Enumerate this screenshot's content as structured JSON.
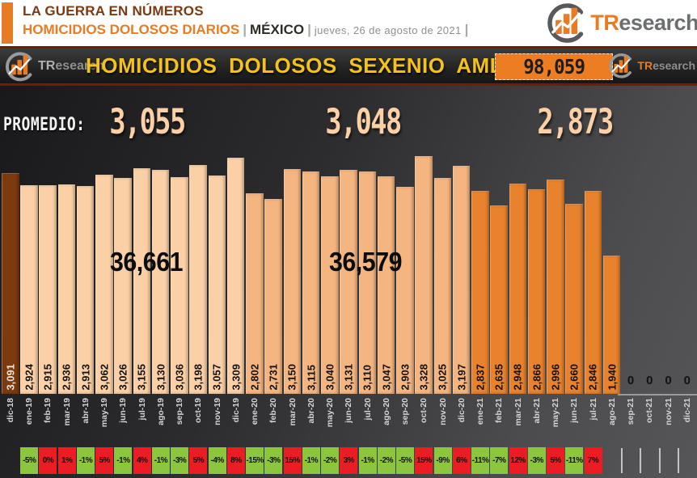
{
  "header": {
    "title_line1": "LA GUERRA EN NÚMEROS",
    "title_line2": "HOMICIDIOS DOLOSOS DIARIOS",
    "pipe": "|",
    "country": "MÉXICO",
    "date": "jueves, 26 de agosto de 2021"
  },
  "brand": {
    "prefix": "TR",
    "suffix": "esearch"
  },
  "titlebar": {
    "title": "HOMICIDIOS DOLOSOS SEXENIO AMLO",
    "total": "98,059"
  },
  "promedio": {
    "label": "PROMEDIO:",
    "values": [
      {
        "text": "3,055",
        "period": "2019"
      },
      {
        "text": "3,048",
        "period": "2020"
      },
      {
        "text": "2,873",
        "period": "2021"
      }
    ]
  },
  "annual_totals": [
    {
      "text": "36,661",
      "period": "2019"
    },
    {
      "text": "36,579",
      "period": "2020"
    }
  ],
  "chart_data": {
    "type": "bar",
    "title": "HOMICIDIOS DOLOSOS SEXENIO AMLO",
    "subtitle": "HOMICIDIOS DOLOSOS DIARIOS | MÉXICO",
    "total_sexenio": 98059,
    "ylim": [
      0,
      3400
    ],
    "legend_position": "none",
    "grid": false,
    "colors": {
      "bar_2018": "#7c3a0f",
      "bar_2019": "#fbd0a6",
      "bar_2020": "#f5b581",
      "bar_2021": "#e8822d",
      "increase_bg": "#ec1c24",
      "decrease_bg": "#8cc63e",
      "accent_orange": "#e87c25",
      "title_yellow": "#f3c21b",
      "title_maroon": "#7b3a12"
    },
    "columns": [
      {
        "month": "dic-18",
        "value": 3091,
        "label": "3,091",
        "group": "2018",
        "pct": null
      },
      {
        "month": "ene-19",
        "value": 2924,
        "label": "2,924",
        "group": "2019",
        "pct": {
          "text": "-5%",
          "dir": "down"
        }
      },
      {
        "month": "feb-19",
        "value": 2915,
        "label": "2,915",
        "group": "2019",
        "pct": {
          "text": "0%",
          "dir": "up"
        }
      },
      {
        "month": "mar-19",
        "value": 2936,
        "label": "2,936",
        "group": "2019",
        "pct": {
          "text": "1%",
          "dir": "up"
        }
      },
      {
        "month": "abr-19",
        "value": 2913,
        "label": "2,913",
        "group": "2019",
        "pct": {
          "text": "-1%",
          "dir": "down"
        }
      },
      {
        "month": "may-19",
        "value": 3062,
        "label": "3,062",
        "group": "2019",
        "pct": {
          "text": "5%",
          "dir": "up"
        }
      },
      {
        "month": "jun-19",
        "value": 3026,
        "label": "3,026",
        "group": "2019",
        "pct": {
          "text": "-1%",
          "dir": "down"
        }
      },
      {
        "month": "jul-19",
        "value": 3155,
        "label": "3,155",
        "group": "2019",
        "pct": {
          "text": "4%",
          "dir": "up"
        }
      },
      {
        "month": "ago-19",
        "value": 3130,
        "label": "3,130",
        "group": "2019",
        "pct": {
          "text": "-1%",
          "dir": "down"
        }
      },
      {
        "month": "sep-19",
        "value": 3036,
        "label": "3,036",
        "group": "2019",
        "pct": {
          "text": "-3%",
          "dir": "down"
        }
      },
      {
        "month": "oct-19",
        "value": 3198,
        "label": "3,198",
        "group": "2019",
        "pct": {
          "text": "5%",
          "dir": "up"
        }
      },
      {
        "month": "nov-19",
        "value": 3057,
        "label": "3,057",
        "group": "2019",
        "pct": {
          "text": "-4%",
          "dir": "down"
        }
      },
      {
        "month": "dic-19",
        "value": 3309,
        "label": "3,309",
        "group": "2019",
        "pct": {
          "text": "8%",
          "dir": "up"
        }
      },
      {
        "month": "ene-20",
        "value": 2802,
        "label": "2,802",
        "group": "2020",
        "pct": {
          "text": "-15%",
          "dir": "down"
        }
      },
      {
        "month": "feb-20",
        "value": 2731,
        "label": "2,731",
        "group": "2020",
        "pct": {
          "text": "-3%",
          "dir": "down"
        }
      },
      {
        "month": "mar-20",
        "value": 3150,
        "label": "3,150",
        "group": "2020",
        "pct": {
          "text": "15%",
          "dir": "up"
        }
      },
      {
        "month": "abr-20",
        "value": 3115,
        "label": "3,115",
        "group": "2020",
        "pct": {
          "text": "-1%",
          "dir": "down"
        }
      },
      {
        "month": "may-20",
        "value": 3040,
        "label": "3,040",
        "group": "2020",
        "pct": {
          "text": "-2%",
          "dir": "down"
        }
      },
      {
        "month": "jun-20",
        "value": 3131,
        "label": "3,131",
        "group": "2020",
        "pct": {
          "text": "3%",
          "dir": "up"
        }
      },
      {
        "month": "jul-20",
        "value": 3110,
        "label": "3,110",
        "group": "2020",
        "pct": {
          "text": "-1%",
          "dir": "down"
        }
      },
      {
        "month": "ago-20",
        "value": 3047,
        "label": "3,047",
        "group": "2020",
        "pct": {
          "text": "-2%",
          "dir": "down"
        }
      },
      {
        "month": "sep-20",
        "value": 2903,
        "label": "2,903",
        "group": "2020",
        "pct": {
          "text": "-5%",
          "dir": "down"
        }
      },
      {
        "month": "oct-20",
        "value": 3328,
        "label": "3,328",
        "group": "2020",
        "pct": {
          "text": "15%",
          "dir": "up"
        }
      },
      {
        "month": "nov-20",
        "value": 3025,
        "label": "3,025",
        "group": "2020",
        "pct": {
          "text": "-9%",
          "dir": "down"
        }
      },
      {
        "month": "dic-20",
        "value": 3197,
        "label": "3,197",
        "group": "2020",
        "pct": {
          "text": "6%",
          "dir": "up"
        }
      },
      {
        "month": "ene-21",
        "value": 2837,
        "label": "2,837",
        "group": "2021",
        "pct": {
          "text": "-11%",
          "dir": "down"
        }
      },
      {
        "month": "feb-21",
        "value": 2635,
        "label": "2,635",
        "group": "2021",
        "pct": {
          "text": "-7%",
          "dir": "down"
        }
      },
      {
        "month": "mar-21",
        "value": 2948,
        "label": "2,948",
        "group": "2021",
        "pct": {
          "text": "12%",
          "dir": "up"
        }
      },
      {
        "month": "abr-21",
        "value": 2866,
        "label": "2,866",
        "group": "2021",
        "pct": {
          "text": "-3%",
          "dir": "down"
        }
      },
      {
        "month": "may-21",
        "value": 2996,
        "label": "2,996",
        "group": "2021",
        "pct": {
          "text": "5%",
          "dir": "up"
        }
      },
      {
        "month": "jun-21",
        "value": 2660,
        "label": "2,660",
        "group": "2021",
        "pct": {
          "text": "-11%",
          "dir": "down"
        }
      },
      {
        "month": "jul-21",
        "value": 2846,
        "label": "2,846",
        "group": "2021",
        "pct": {
          "text": "7%",
          "dir": "up"
        }
      },
      {
        "month": "ago-21",
        "value": 1940,
        "label": "1,940",
        "group": "2021",
        "pct": null
      },
      {
        "month": "sep-21",
        "value": 0,
        "label": "0",
        "group": "future",
        "pct": null
      },
      {
        "month": "oct-21",
        "value": 0,
        "label": "0",
        "group": "future",
        "pct": null
      },
      {
        "month": "nov-21",
        "value": 0,
        "label": "0",
        "group": "future",
        "pct": null
      },
      {
        "month": "dic-21",
        "value": 0,
        "label": "0",
        "group": "future",
        "pct": null
      }
    ]
  }
}
